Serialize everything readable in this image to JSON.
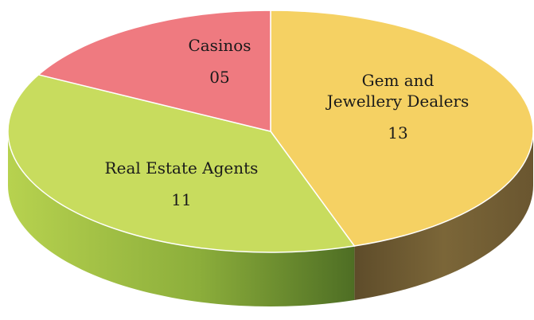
{
  "chart_data": {
    "type": "pie",
    "style": "3d",
    "slices": [
      {
        "name": "Gem and Jewellery Dealers",
        "label_lines": [
          "Gem and",
          "Jewellery Dealers"
        ],
        "value": 13,
        "value_label": "13",
        "color": "#f5d163",
        "side_color": "#6e5a30"
      },
      {
        "name": "Real Estate Agents",
        "label_lines": [
          "Real Estate Agents"
        ],
        "value": 11,
        "value_label": "11",
        "color": "#c8dc5e",
        "side_color": "#8aaa3c"
      },
      {
        "name": "Casinos",
        "label_lines": [
          "Casinos"
        ],
        "value": 5,
        "value_label": "05",
        "color": "#ef7a80",
        "side_color": "#b85a5e"
      }
    ]
  }
}
